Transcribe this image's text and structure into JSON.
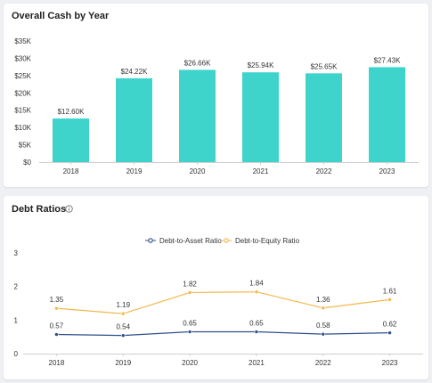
{
  "cash_card": {
    "title": "Overall Cash by Year"
  },
  "debt_card": {
    "title": "Debt Ratios",
    "info_icon": "info-icon"
  },
  "chart_data": [
    {
      "type": "bar",
      "title": "Overall Cash by Year",
      "categories": [
        "2018",
        "2019",
        "2020",
        "2021",
        "2022",
        "2023"
      ],
      "values": [
        12.6,
        24.22,
        26.66,
        25.94,
        25.65,
        27.43
      ],
      "data_labels": [
        "$12.60K",
        "$24.22K",
        "$26.66K",
        "$25.94K",
        "$25.65K",
        "$27.43K"
      ],
      "ylim": [
        0,
        35
      ],
      "y_ticks": [
        0,
        5,
        10,
        15,
        20,
        25,
        30,
        35
      ],
      "y_tick_labels": [
        "$0",
        "$5K",
        "$10K",
        "$15K",
        "$20K",
        "$25K",
        "$30K",
        "$35K"
      ],
      "bar_color": "#3ed4cc",
      "grid": false
    },
    {
      "type": "line",
      "title": "Debt Ratios",
      "categories": [
        "2018",
        "2019",
        "2020",
        "2021",
        "2022",
        "2023"
      ],
      "series": [
        {
          "name": "Debt-to-Asset Ratio",
          "values": [
            0.57,
            0.54,
            0.65,
            0.65,
            0.58,
            0.62
          ],
          "labels": [
            "0.57",
            "0.54",
            "0.65",
            "0.65",
            "0.58",
            "0.62"
          ],
          "color": "#2f4f8a"
        },
        {
          "name": "Debt-to-Equity Ratio",
          "values": [
            1.35,
            1.19,
            1.82,
            1.84,
            1.36,
            1.61
          ],
          "labels": [
            "1.35",
            "1.19",
            "1.82",
            "1.84",
            "1.36",
            "1.61"
          ],
          "color": "#f2b84b"
        }
      ],
      "ylim": [
        0,
        3
      ],
      "y_ticks": [
        0,
        1,
        2,
        3
      ],
      "y_tick_labels": [
        "0",
        "1",
        "2",
        "3"
      ],
      "legend_position": "top-center",
      "grid": false
    }
  ]
}
